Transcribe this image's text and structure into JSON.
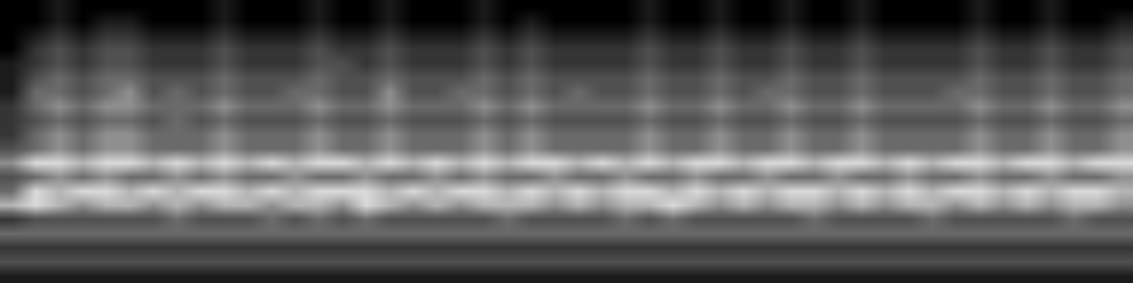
{
  "chart_data": {
    "type": "heatmap",
    "tick_labels": false,
    "color_range": [
      0,
      8
    ],
    "cells": [
      [
        0,
        0,
        1,
        0,
        0,
        0,
        0,
        0,
        0,
        1,
        0,
        0,
        0,
        1,
        0,
        0,
        1,
        0,
        0,
        0,
        1,
        0,
        0,
        0,
        0,
        0,
        0,
        1,
        0,
        0,
        1,
        0,
        0,
        1,
        0,
        0,
        1,
        0,
        0,
        0,
        0,
        1,
        0,
        0,
        1,
        0,
        0,
        0
      ],
      [
        0,
        0,
        1,
        0,
        1,
        1,
        0,
        0,
        0,
        1,
        0,
        0,
        0,
        1,
        0,
        0,
        1,
        0,
        0,
        0,
        1,
        0,
        1,
        0,
        0,
        0,
        0,
        1,
        0,
        0,
        1,
        0,
        0,
        1,
        0,
        0,
        1,
        0,
        0,
        0,
        0,
        1,
        0,
        0,
        1,
        0,
        0,
        1
      ],
      [
        0,
        1,
        2,
        1,
        2,
        2,
        1,
        1,
        1,
        2,
        1,
        1,
        1,
        2,
        1,
        1,
        2,
        1,
        1,
        1,
        2,
        1,
        2,
        1,
        1,
        1,
        1,
        2,
        1,
        1,
        2,
        1,
        1,
        2,
        1,
        1,
        2,
        1,
        1,
        1,
        1,
        2,
        1,
        1,
        2,
        1,
        1,
        2
      ],
      [
        0,
        2,
        3,
        2,
        3,
        3,
        2,
        2,
        2,
        3,
        2,
        2,
        2,
        3,
        2,
        2,
        3,
        2,
        2,
        2,
        3,
        2,
        3,
        2,
        2,
        2,
        2,
        3,
        2,
        2,
        3,
        2,
        2,
        3,
        2,
        2,
        3,
        2,
        2,
        2,
        2,
        3,
        2,
        2,
        3,
        2,
        2,
        3
      ],
      [
        1,
        2,
        3,
        2,
        3,
        3,
        2,
        2,
        2,
        3,
        2,
        2,
        2,
        3,
        3,
        2,
        3,
        2,
        2,
        2,
        3,
        2,
        3,
        2,
        2,
        2,
        2,
        3,
        2,
        2,
        3,
        2,
        2,
        3,
        2,
        2,
        3,
        2,
        2,
        2,
        2,
        3,
        2,
        2,
        3,
        2,
        2,
        3
      ],
      [
        1,
        3,
        4,
        3,
        4,
        4,
        3,
        3,
        3,
        4,
        3,
        3,
        3,
        4,
        3,
        3,
        4,
        3,
        3,
        3,
        4,
        3,
        4,
        3,
        3,
        3,
        3,
        4,
        3,
        3,
        4,
        3,
        3,
        4,
        3,
        3,
        4,
        3,
        3,
        3,
        3,
        4,
        3,
        3,
        4,
        3,
        3,
        4
      ],
      [
        1,
        4,
        4,
        3,
        4,
        5,
        3,
        4,
        3,
        4,
        3,
        3,
        4,
        4,
        3,
        3,
        5,
        3,
        3,
        4,
        4,
        3,
        4,
        3,
        4,
        3,
        3,
        4,
        3,
        3,
        4,
        3,
        4,
        4,
        3,
        3,
        4,
        3,
        3,
        3,
        4,
        4,
        3,
        3,
        4,
        3,
        3,
        4
      ],
      [
        2,
        4,
        5,
        4,
        5,
        5,
        4,
        4,
        4,
        5,
        4,
        4,
        4,
        5,
        4,
        4,
        5,
        4,
        4,
        4,
        5,
        4,
        5,
        4,
        4,
        4,
        4,
        5,
        4,
        4,
        5,
        4,
        4,
        5,
        4,
        4,
        5,
        4,
        4,
        4,
        4,
        5,
        4,
        4,
        5,
        4,
        4,
        5
      ],
      [
        2,
        3,
        4,
        3,
        4,
        4,
        3,
        4,
        3,
        4,
        3,
        3,
        3,
        4,
        3,
        3,
        4,
        3,
        3,
        3,
        4,
        3,
        4,
        3,
        3,
        3,
        3,
        4,
        3,
        3,
        4,
        3,
        3,
        4,
        3,
        3,
        4,
        3,
        3,
        3,
        3,
        4,
        3,
        3,
        4,
        3,
        3,
        4
      ],
      [
        2,
        4,
        5,
        4,
        5,
        5,
        4,
        4,
        4,
        5,
        4,
        4,
        4,
        5,
        4,
        4,
        5,
        4,
        4,
        4,
        5,
        4,
        5,
        4,
        4,
        4,
        4,
        5,
        4,
        4,
        5,
        4,
        4,
        5,
        4,
        4,
        5,
        4,
        4,
        4,
        4,
        5,
        4,
        4,
        5,
        4,
        4,
        5
      ],
      [
        3,
        4,
        5,
        4,
        5,
        5,
        4,
        4,
        4,
        5,
        4,
        4,
        4,
        5,
        4,
        4,
        5,
        4,
        4,
        4,
        5,
        4,
        5,
        4,
        4,
        4,
        4,
        5,
        4,
        4,
        5,
        4,
        4,
        5,
        4,
        4,
        5,
        4,
        4,
        4,
        4,
        5,
        4,
        4,
        5,
        4,
        4,
        5
      ],
      [
        5,
        7,
        7,
        6,
        7,
        7,
        6,
        7,
        6,
        7,
        6,
        7,
        6,
        7,
        7,
        6,
        7,
        6,
        7,
        6,
        7,
        6,
        7,
        7,
        6,
        7,
        6,
        7,
        6,
        7,
        7,
        6,
        7,
        7,
        6,
        7,
        7,
        6,
        7,
        6,
        7,
        7,
        6,
        7,
        7,
        6,
        7,
        7
      ],
      [
        3,
        4,
        5,
        4,
        5,
        4,
        4,
        5,
        4,
        5,
        4,
        4,
        5,
        4,
        4,
        5,
        4,
        4,
        5,
        4,
        5,
        4,
        4,
        5,
        4,
        4,
        5,
        4,
        4,
        5,
        4,
        4,
        5,
        4,
        4,
        5,
        4,
        4,
        5,
        4,
        4,
        5,
        4,
        4,
        5,
        4,
        4,
        5
      ],
      [
        4,
        7,
        6,
        7,
        7,
        6,
        7,
        6,
        7,
        7,
        6,
        7,
        6,
        7,
        7,
        7,
        6,
        7,
        6,
        7,
        7,
        6,
        7,
        6,
        7,
        6,
        7,
        7,
        6,
        7,
        6,
        7,
        6,
        7,
        7,
        6,
        7,
        6,
        7,
        6,
        7,
        7,
        6,
        7,
        6,
        7,
        7,
        6
      ],
      [
        6,
        7,
        6,
        5,
        6,
        6,
        5,
        6,
        5,
        6,
        6,
        5,
        6,
        6,
        5,
        7,
        6,
        5,
        6,
        5,
        6,
        6,
        6,
        5,
        6,
        5,
        6,
        6,
        7,
        6,
        5,
        6,
        5,
        6,
        6,
        5,
        6,
        5,
        6,
        6,
        5,
        6,
        5,
        6,
        5,
        6,
        6,
        5
      ],
      [
        2,
        3,
        3,
        3,
        3,
        3,
        3,
        4,
        3,
        3,
        3,
        4,
        3,
        4,
        3,
        4,
        3,
        3,
        3,
        3,
        3,
        4,
        3,
        3,
        3,
        3,
        4,
        3,
        4,
        3,
        3,
        3,
        3,
        3,
        4,
        3,
        3,
        3,
        3,
        4,
        3,
        3,
        3,
        3,
        3,
        4,
        3,
        3
      ],
      [
        4,
        4,
        4,
        4,
        4,
        4,
        4,
        4,
        4,
        4,
        4,
        4,
        4,
        4,
        4,
        4,
        4,
        4,
        4,
        4,
        4,
        4,
        4,
        4,
        4,
        4,
        4,
        4,
        4,
        4,
        4,
        4,
        4,
        4,
        4,
        4,
        4,
        4,
        4,
        4,
        4,
        4,
        4,
        4,
        4,
        4,
        4,
        4
      ],
      [
        2,
        2,
        2,
        2,
        2,
        2,
        2,
        2,
        2,
        2,
        2,
        2,
        2,
        2,
        2,
        2,
        2,
        2,
        2,
        2,
        2,
        2,
        2,
        2,
        2,
        2,
        2,
        2,
        2,
        2,
        2,
        2,
        2,
        2,
        2,
        2,
        2,
        2,
        2,
        2,
        2,
        2,
        2,
        2,
        2,
        2,
        2,
        2
      ],
      [
        3,
        3,
        3,
        3,
        3,
        3,
        3,
        3,
        3,
        3,
        3,
        3,
        3,
        3,
        3,
        3,
        3,
        3,
        3,
        3,
        3,
        3,
        3,
        3,
        3,
        3,
        3,
        3,
        3,
        3,
        3,
        3,
        3,
        3,
        3,
        3,
        3,
        3,
        3,
        3,
        3,
        3,
        3,
        3,
        3,
        3,
        3,
        3
      ],
      [
        1,
        1,
        1,
        1,
        1,
        1,
        1,
        1,
        1,
        1,
        1,
        1,
        1,
        1,
        1,
        1,
        1,
        1,
        1,
        1,
        1,
        1,
        1,
        1,
        1,
        1,
        1,
        1,
        1,
        1,
        1,
        1,
        1,
        1,
        1,
        1,
        1,
        1,
        1,
        1,
        1,
        1,
        1,
        1,
        1,
        1,
        1,
        1
      ]
    ]
  }
}
